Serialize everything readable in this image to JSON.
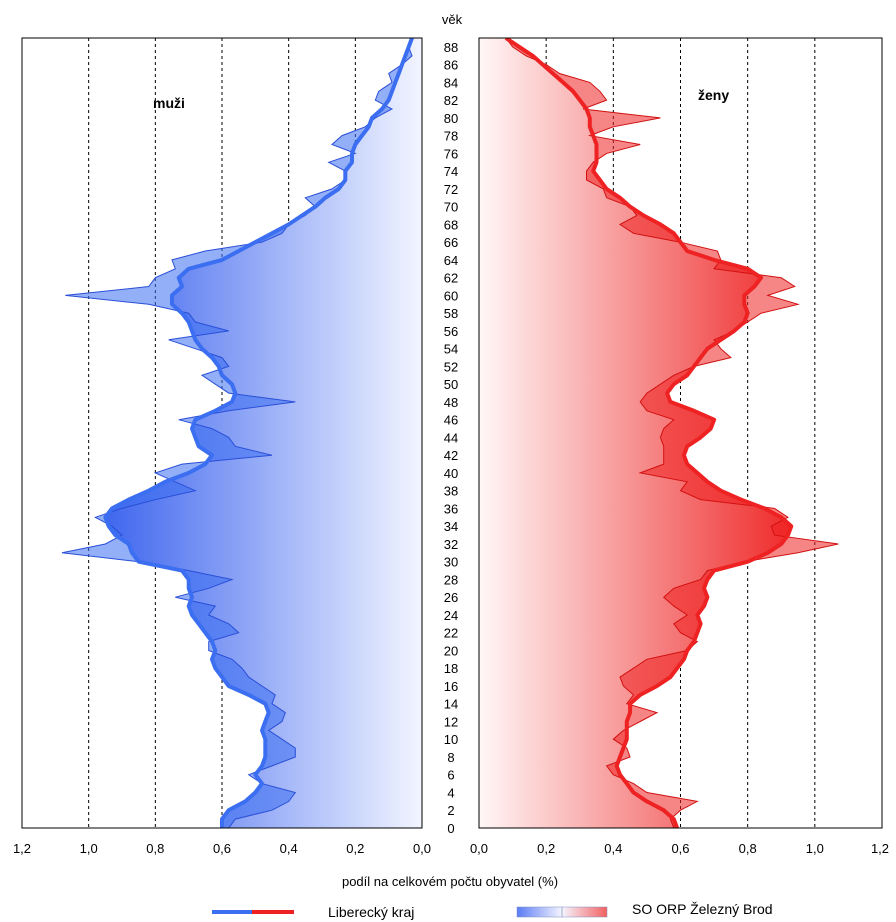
{
  "chart_data": {
    "type": "area",
    "y_axis_label": "věk",
    "xlabel": "podíl na celkovém počtu obyvatel (%)",
    "age_ticks": [
      "0",
      "2",
      "4",
      "6",
      "8",
      "10",
      "12",
      "14",
      "16",
      "18",
      "20",
      "22",
      "24",
      "26",
      "28",
      "30",
      "32",
      "34",
      "36",
      "38",
      "40",
      "42",
      "44",
      "46",
      "48",
      "50",
      "52",
      "54",
      "56",
      "58",
      "60",
      "62",
      "64",
      "66",
      "68",
      "70",
      "72",
      "74",
      "76",
      "78",
      "80",
      "82",
      "84",
      "86",
      "88"
    ],
    "xlim": [
      0,
      1.2
    ],
    "x_ticks_left": [
      "1,2",
      "1,0",
      "0,8",
      "0,6",
      "0,4",
      "0,2",
      "0,0"
    ],
    "x_ticks_right": [
      "0,0",
      "0,2",
      "0,4",
      "0,6",
      "0,8",
      "1,0",
      "1,2"
    ],
    "grid_x": [
      0.2,
      0.4,
      0.6,
      0.8,
      1.0
    ],
    "panels": [
      {
        "name": "muži",
        "side": "left",
        "color": "#3b6ef0",
        "series": [
          {
            "name": "Liberecký kraj",
            "kind": "line",
            "ages": [
              0,
              1,
              2,
              3,
              4,
              5,
              6,
              7,
              8,
              9,
              10,
              11,
              12,
              13,
              14,
              15,
              16,
              17,
              18,
              19,
              20,
              21,
              22,
              23,
              24,
              25,
              26,
              27,
              28,
              29,
              30,
              31,
              32,
              33,
              34,
              35,
              36,
              37,
              38,
              39,
              40,
              41,
              42,
              43,
              44,
              45,
              46,
              47,
              48,
              49,
              50,
              51,
              52,
              53,
              54,
              55,
              56,
              57,
              58,
              59,
              60,
              61,
              62,
              63,
              64,
              65,
              66,
              67,
              68,
              69,
              70,
              71,
              72,
              73,
              74,
              75,
              76,
              77,
              78,
              79,
              80,
              81,
              82,
              83,
              84,
              85,
              86,
              87,
              88,
              89
            ],
            "values": [
              0.6,
              0.6,
              0.58,
              0.53,
              0.5,
              0.48,
              0.5,
              0.48,
              0.47,
              0.47,
              0.47,
              0.48,
              0.47,
              0.46,
              0.47,
              0.52,
              0.58,
              0.6,
              0.62,
              0.63,
              0.62,
              0.63,
              0.65,
              0.67,
              0.69,
              0.7,
              0.69,
              0.7,
              0.7,
              0.72,
              0.85,
              0.87,
              0.88,
              0.92,
              0.94,
              0.95,
              0.93,
              0.88,
              0.82,
              0.77,
              0.7,
              0.65,
              0.63,
              0.67,
              0.68,
              0.69,
              0.68,
              0.62,
              0.57,
              0.56,
              0.57,
              0.6,
              0.61,
              0.63,
              0.66,
              0.68,
              0.69,
              0.7,
              0.72,
              0.75,
              0.75,
              0.72,
              0.73,
              0.7,
              0.6,
              0.55,
              0.5,
              0.45,
              0.4,
              0.36,
              0.32,
              0.29,
              0.25,
              0.23,
              0.23,
              0.21,
              0.21,
              0.2,
              0.18,
              0.16,
              0.15,
              0.12,
              0.1,
              0.09,
              0.08,
              0.07,
              0.06,
              0.05,
              0.04,
              0.03
            ]
          },
          {
            "name": "SO ORP Železný Brod",
            "kind": "area",
            "ages": [
              0,
              1,
              2,
              3,
              4,
              5,
              6,
              7,
              8,
              9,
              10,
              11,
              12,
              13,
              14,
              15,
              16,
              17,
              18,
              19,
              20,
              21,
              22,
              23,
              24,
              25,
              26,
              27,
              28,
              29,
              30,
              31,
              32,
              33,
              34,
              35,
              36,
              37,
              38,
              39,
              40,
              41,
              42,
              43,
              44,
              45,
              46,
              47,
              48,
              49,
              50,
              51,
              52,
              53,
              54,
              55,
              56,
              57,
              58,
              59,
              60,
              61,
              62,
              63,
              64,
              65,
              66,
              67,
              68,
              69,
              70,
              71,
              72,
              73,
              74,
              75,
              76,
              77,
              78,
              79,
              80,
              81,
              82,
              83,
              84,
              85,
              86,
              87,
              88,
              89
            ],
            "values": [
              0.58,
              0.56,
              0.45,
              0.4,
              0.38,
              0.48,
              0.52,
              0.45,
              0.38,
              0.38,
              0.42,
              0.46,
              0.42,
              0.41,
              0.45,
              0.44,
              0.48,
              0.52,
              0.54,
              0.57,
              0.64,
              0.64,
              0.55,
              0.58,
              0.64,
              0.62,
              0.74,
              0.64,
              0.57,
              0.7,
              0.85,
              1.08,
              0.95,
              0.9,
              0.93,
              0.98,
              0.9,
              0.8,
              0.68,
              0.74,
              0.8,
              0.72,
              0.45,
              0.56,
              0.58,
              0.63,
              0.73,
              0.58,
              0.38,
              0.58,
              0.62,
              0.66,
              0.58,
              0.6,
              0.68,
              0.76,
              0.58,
              0.68,
              0.7,
              0.82,
              1.07,
              0.82,
              0.8,
              0.74,
              0.75,
              0.65,
              0.48,
              0.42,
              0.4,
              0.35,
              0.32,
              0.35,
              0.27,
              0.23,
              0.23,
              0.28,
              0.2,
              0.27,
              0.24,
              0.17,
              0.14,
              0.09,
              0.14,
              0.13,
              0.09,
              0.1,
              0.06,
              0.03,
              0.04,
              0.03
            ]
          }
        ]
      },
      {
        "name": "ženy",
        "side": "right",
        "color": "#ee2222",
        "series": [
          {
            "name": "Liberecký kraj",
            "kind": "line",
            "ages": [
              0,
              1,
              2,
              3,
              4,
              5,
              6,
              7,
              8,
              9,
              10,
              11,
              12,
              13,
              14,
              15,
              16,
              17,
              18,
              19,
              20,
              21,
              22,
              23,
              24,
              25,
              26,
              27,
              28,
              29,
              30,
              31,
              32,
              33,
              34,
              35,
              36,
              37,
              38,
              39,
              40,
              41,
              42,
              43,
              44,
              45,
              46,
              47,
              48,
              49,
              50,
              51,
              52,
              53,
              54,
              55,
              56,
              57,
              58,
              59,
              60,
              61,
              62,
              63,
              64,
              65,
              66,
              67,
              68,
              69,
              70,
              71,
              72,
              73,
              74,
              75,
              76,
              77,
              78,
              79,
              80,
              81,
              82,
              83,
              84,
              85,
              86,
              87,
              88,
              89
            ],
            "values": [
              0.59,
              0.58,
              0.55,
              0.5,
              0.46,
              0.44,
              0.42,
              0.41,
              0.42,
              0.43,
              0.44,
              0.44,
              0.44,
              0.45,
              0.45,
              0.48,
              0.53,
              0.57,
              0.59,
              0.61,
              0.62,
              0.64,
              0.65,
              0.66,
              0.65,
              0.67,
              0.68,
              0.67,
              0.68,
              0.7,
              0.8,
              0.86,
              0.9,
              0.92,
              0.93,
              0.9,
              0.85,
              0.78,
              0.72,
              0.68,
              0.65,
              0.62,
              0.61,
              0.62,
              0.66,
              0.69,
              0.7,
              0.64,
              0.57,
              0.56,
              0.58,
              0.62,
              0.64,
              0.66,
              0.68,
              0.72,
              0.76,
              0.79,
              0.8,
              0.79,
              0.79,
              0.82,
              0.84,
              0.8,
              0.7,
              0.62,
              0.6,
              0.58,
              0.54,
              0.49,
              0.45,
              0.42,
              0.38,
              0.36,
              0.34,
              0.35,
              0.35,
              0.35,
              0.34,
              0.33,
              0.33,
              0.32,
              0.3,
              0.28,
              0.25,
              0.22,
              0.19,
              0.16,
              0.12,
              0.08
            ]
          },
          {
            "name": "SO ORP Železný Brod",
            "kind": "area",
            "ages": [
              0,
              1,
              2,
              3,
              4,
              5,
              6,
              7,
              8,
              9,
              10,
              11,
              12,
              13,
              14,
              15,
              16,
              17,
              18,
              19,
              20,
              21,
              22,
              23,
              24,
              25,
              26,
              27,
              28,
              29,
              30,
              31,
              32,
              33,
              34,
              35,
              36,
              37,
              38,
              39,
              40,
              41,
              42,
              43,
              44,
              45,
              46,
              47,
              48,
              49,
              50,
              51,
              52,
              53,
              54,
              55,
              56,
              57,
              58,
              59,
              60,
              61,
              62,
              63,
              64,
              65,
              66,
              67,
              68,
              69,
              70,
              71,
              72,
              73,
              74,
              75,
              76,
              77,
              78,
              79,
              80,
              81,
              82,
              83,
              84,
              85,
              86,
              87,
              88,
              89
            ],
            "values": [
              0.58,
              0.57,
              0.6,
              0.65,
              0.5,
              0.46,
              0.4,
              0.38,
              0.45,
              0.44,
              0.4,
              0.43,
              0.48,
              0.53,
              0.44,
              0.46,
              0.43,
              0.42,
              0.46,
              0.5,
              0.62,
              0.65,
              0.6,
              0.58,
              0.62,
              0.58,
              0.55,
              0.58,
              0.66,
              0.68,
              0.79,
              0.95,
              1.07,
              0.88,
              0.87,
              0.92,
              0.88,
              0.66,
              0.6,
              0.62,
              0.48,
              0.55,
              0.55,
              0.55,
              0.54,
              0.55,
              0.58,
              0.5,
              0.48,
              0.5,
              0.54,
              0.58,
              0.64,
              0.75,
              0.72,
              0.7,
              0.76,
              0.8,
              0.84,
              0.95,
              0.86,
              0.94,
              0.9,
              0.7,
              0.72,
              0.71,
              0.6,
              0.46,
              0.42,
              0.47,
              0.45,
              0.38,
              0.37,
              0.32,
              0.32,
              0.34,
              0.38,
              0.48,
              0.33,
              0.4,
              0.54,
              0.31,
              0.38,
              0.36,
              0.33,
              0.24,
              0.2,
              0.14,
              0.1,
              0.08
            ]
          }
        ]
      }
    ],
    "legend": [
      {
        "label": "Liberecký kraj",
        "kind": "line",
        "colors": [
          "#3b6ef0",
          "#ee2222"
        ]
      },
      {
        "label": "SO ORP Železný Brod",
        "kind": "area",
        "colors": [
          "#5b7cf5",
          "#f26060"
        ]
      }
    ]
  }
}
